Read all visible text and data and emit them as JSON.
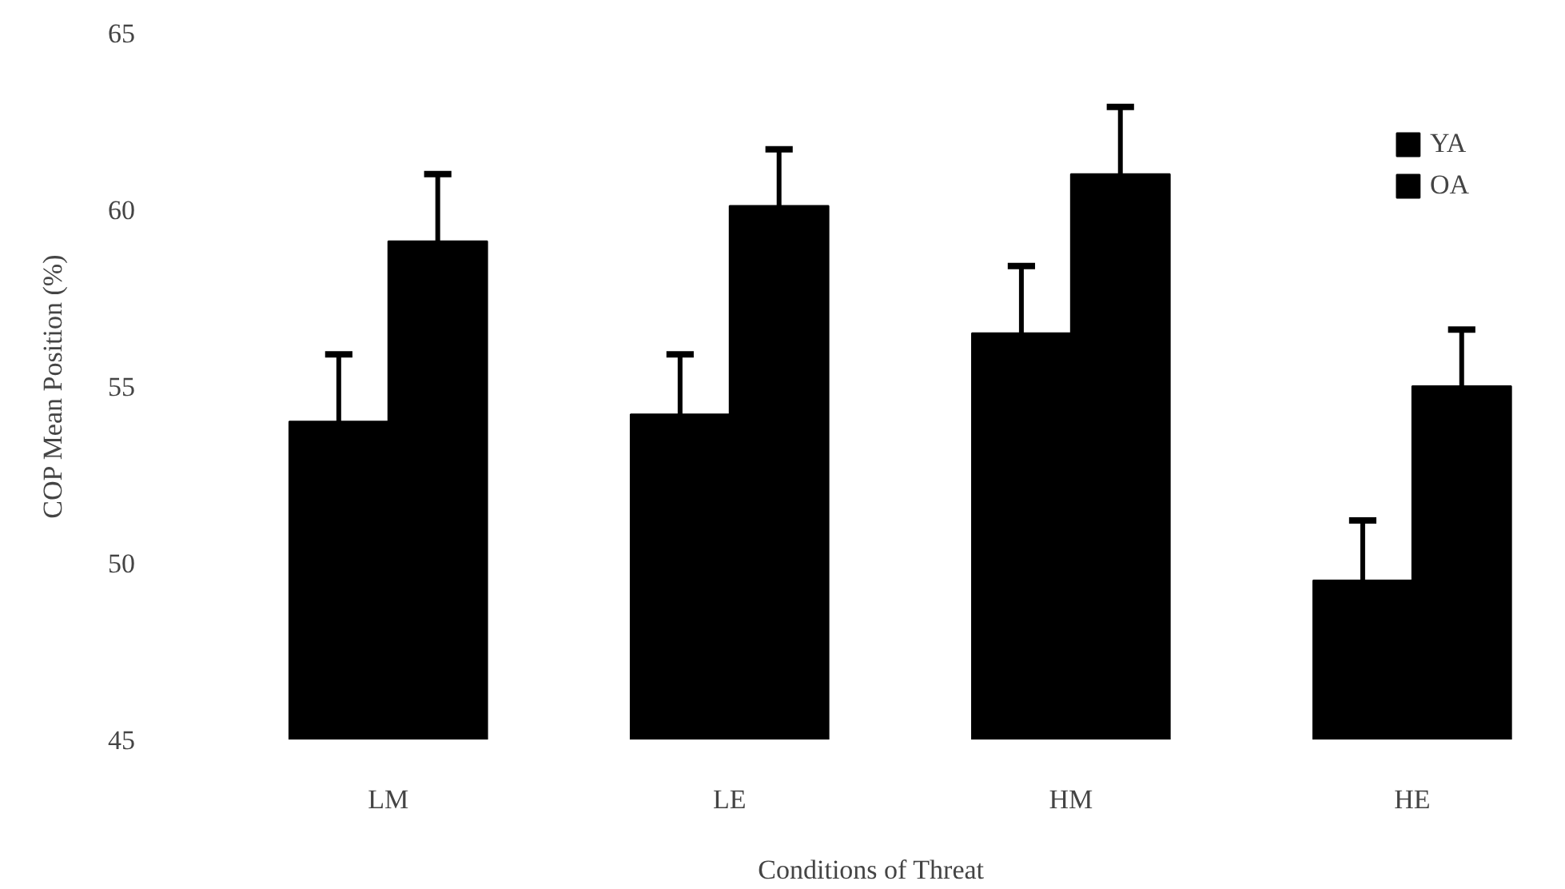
{
  "chart_data": {
    "type": "bar",
    "xlabel": "Conditions of Threat",
    "ylabel": "COP Mean Position (%)",
    "categories": [
      "LM",
      "LE",
      "HM",
      "HE"
    ],
    "series": [
      {
        "name": "YA",
        "color": "#000000",
        "values": [
          54.0,
          54.2,
          56.5,
          49.5
        ],
        "errors": [
          [
            54.0,
            55.9
          ],
          [
            54.2,
            55.9
          ],
          [
            56.5,
            58.4
          ],
          [
            49.5,
            51.2
          ]
        ]
      },
      {
        "name": "OA",
        "color": "#000000",
        "values": [
          59.1,
          60.1,
          61.0,
          55.0
        ],
        "errors": [
          [
            59.1,
            61.0
          ],
          [
            60.1,
            61.7
          ],
          [
            61.0,
            62.9
          ],
          [
            55.0,
            56.6
          ]
        ]
      }
    ],
    "ylim": [
      45,
      65
    ],
    "yticks": [
      45,
      50,
      55,
      60,
      65
    ],
    "grid": false,
    "legend": "top right"
  }
}
